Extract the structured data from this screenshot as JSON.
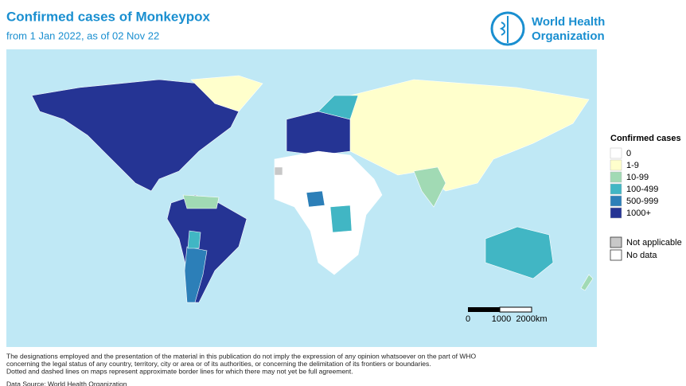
{
  "header": {
    "title": "Confirmed cases of Monkeypox",
    "subtitle": "from 1 Jan 2022, as of 02 Nov 22",
    "logo": [
      "World Health",
      "Organization"
    ]
  },
  "legend": {
    "title": "Confirmed cases",
    "items": [
      {
        "label": "0",
        "color": "#ffffff"
      },
      {
        "label": "1-9",
        "color": "#ffffcc"
      },
      {
        "label": "10-99",
        "color": "#a1dab4"
      },
      {
        "label": "100-499",
        "color": "#41b6c4"
      },
      {
        "label": "500-999",
        "color": "#2c7fb8"
      },
      {
        "label": "1000+",
        "color": "#253494"
      }
    ],
    "other": [
      {
        "label": "Not applicable",
        "color": "#c8c8c8"
      },
      {
        "label": "No data",
        "color": "#ffffff"
      }
    ]
  },
  "scale": {
    "labels": [
      "0",
      "1000",
      "2000km"
    ]
  },
  "footnote": [
    "The designations employed and the presentation of the material in this publication do not imply the expression of any opinion whatsoever on the part of WHO",
    "concerning the legal status of any country, territory, city or area or of its authorities, or concerning the delimitation of its frontiers or boundaries.",
    "Dotted and dashed lines on maps represent approximate border lines for which there may not yet be full agreement."
  ],
  "source": "Data Source: World Health Organization"
}
